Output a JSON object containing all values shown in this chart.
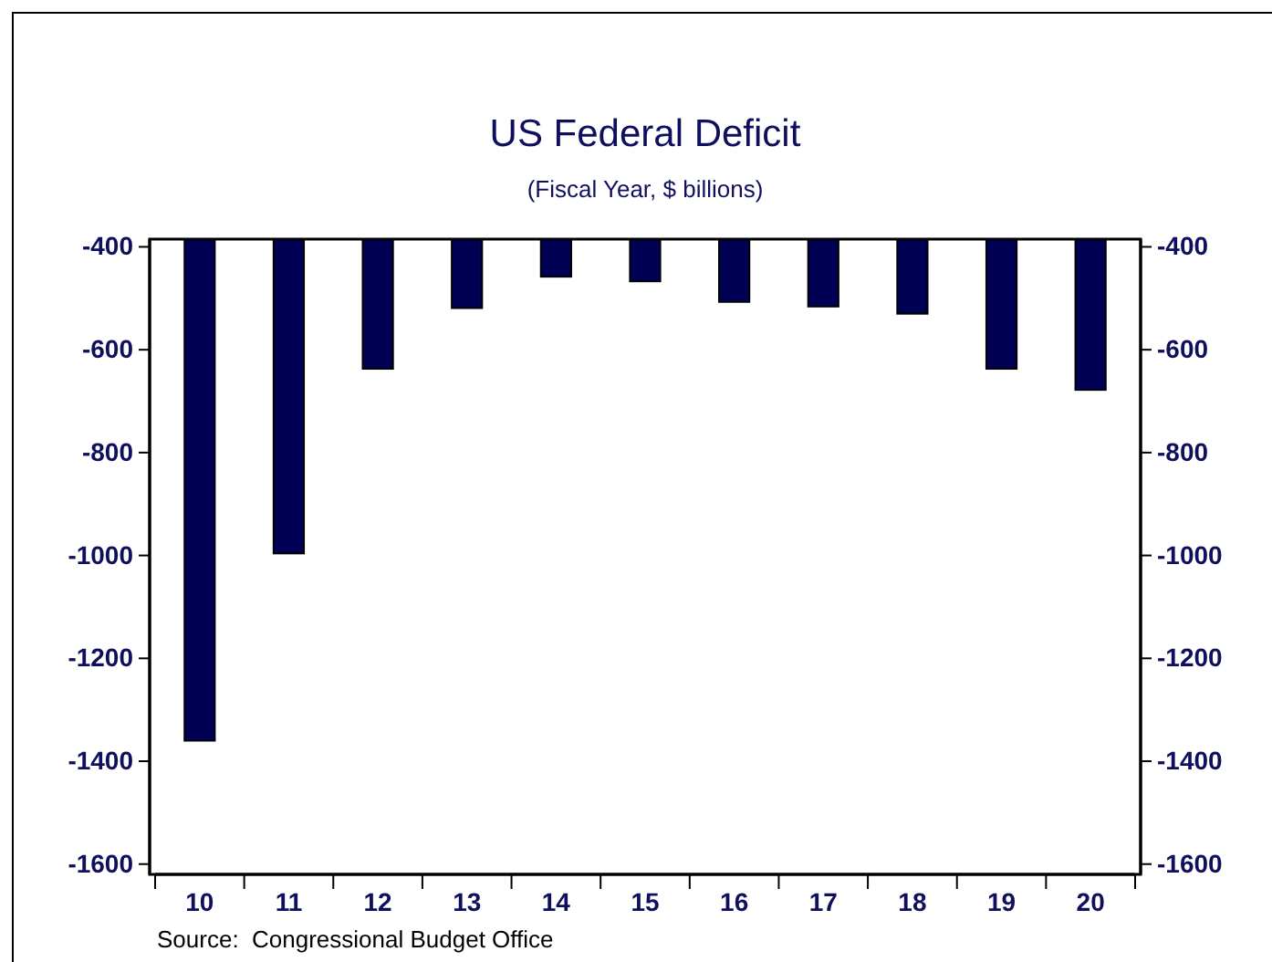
{
  "chart_data": {
    "type": "bar",
    "title": "US Federal Deficit",
    "subtitle": "(Fiscal Year, $ billions)",
    "categories": [
      "10",
      "11",
      "12",
      "13",
      "14",
      "15",
      "16",
      "17",
      "18",
      "19",
      "20"
    ],
    "values": [
      -1360,
      -996,
      -637,
      -519,
      -458,
      -467,
      -507,
      -516,
      -530,
      -637,
      -678
    ],
    "color": "#000055",
    "ylim": [
      -1620,
      -385
    ],
    "yticks": [
      -400,
      -600,
      -800,
      -1000,
      -1200,
      -1400,
      -1600
    ],
    "y2lim": [
      -1620,
      -385
    ],
    "y2ticks": [
      -400,
      -600,
      -800,
      -1000,
      -1200,
      -1400,
      -1600
    ],
    "grid": false,
    "annotations": [
      "Source:  Congressional Budget Office"
    ]
  }
}
